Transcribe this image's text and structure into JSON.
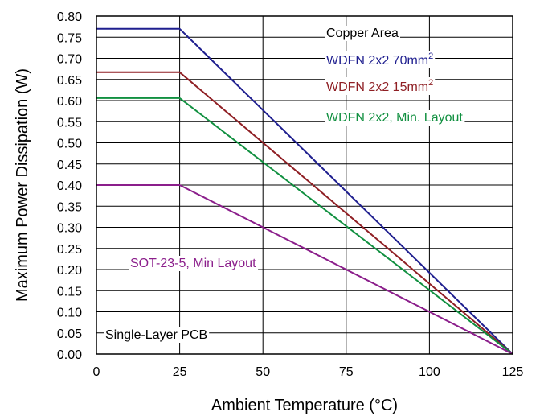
{
  "chart_data": {
    "type": "line",
    "xlabel": "Ambient Temperature (°C)",
    "ylabel": "Maximum Power Dissipation (W)",
    "xlim": [
      0,
      125
    ],
    "ylim": [
      0,
      0.8
    ],
    "x_ticks": [
      "0",
      "25",
      "50",
      "75",
      "100",
      "125"
    ],
    "y_ticks": [
      "0.00",
      "0.05",
      "0.10",
      "0.15",
      "0.20",
      "0.25",
      "0.30",
      "0.35",
      "0.40",
      "0.45",
      "0.50",
      "0.55",
      "0.60",
      "0.65",
      "0.70",
      "0.75",
      "0.80"
    ],
    "grid": true,
    "series": [
      {
        "name": "WDFN 2x2 70mm",
        "superscript": "2",
        "color": "#1f1f8f",
        "x": [
          0,
          25,
          125
        ],
        "y": [
          0.77,
          0.77,
          0
        ]
      },
      {
        "name": "WDFN 2x2 15mm",
        "superscript": "2",
        "color": "#8f1f24",
        "x": [
          0,
          25,
          125
        ],
        "y": [
          0.667,
          0.667,
          0
        ]
      },
      {
        "name": "WDFN 2x2, Min. Layout",
        "superscript": "",
        "color": "#119040",
        "x": [
          0,
          25,
          125
        ],
        "y": [
          0.606,
          0.606,
          0
        ]
      },
      {
        "name": "SOT-23-5, Min Layout",
        "superscript": "",
        "color": "#8b1e8b",
        "x": [
          0,
          25,
          125
        ],
        "y": [
          0.4,
          0.4,
          0
        ]
      }
    ],
    "annotations": {
      "copper_area": "Copper Area",
      "pcb": "Single-Layer PCB"
    }
  }
}
